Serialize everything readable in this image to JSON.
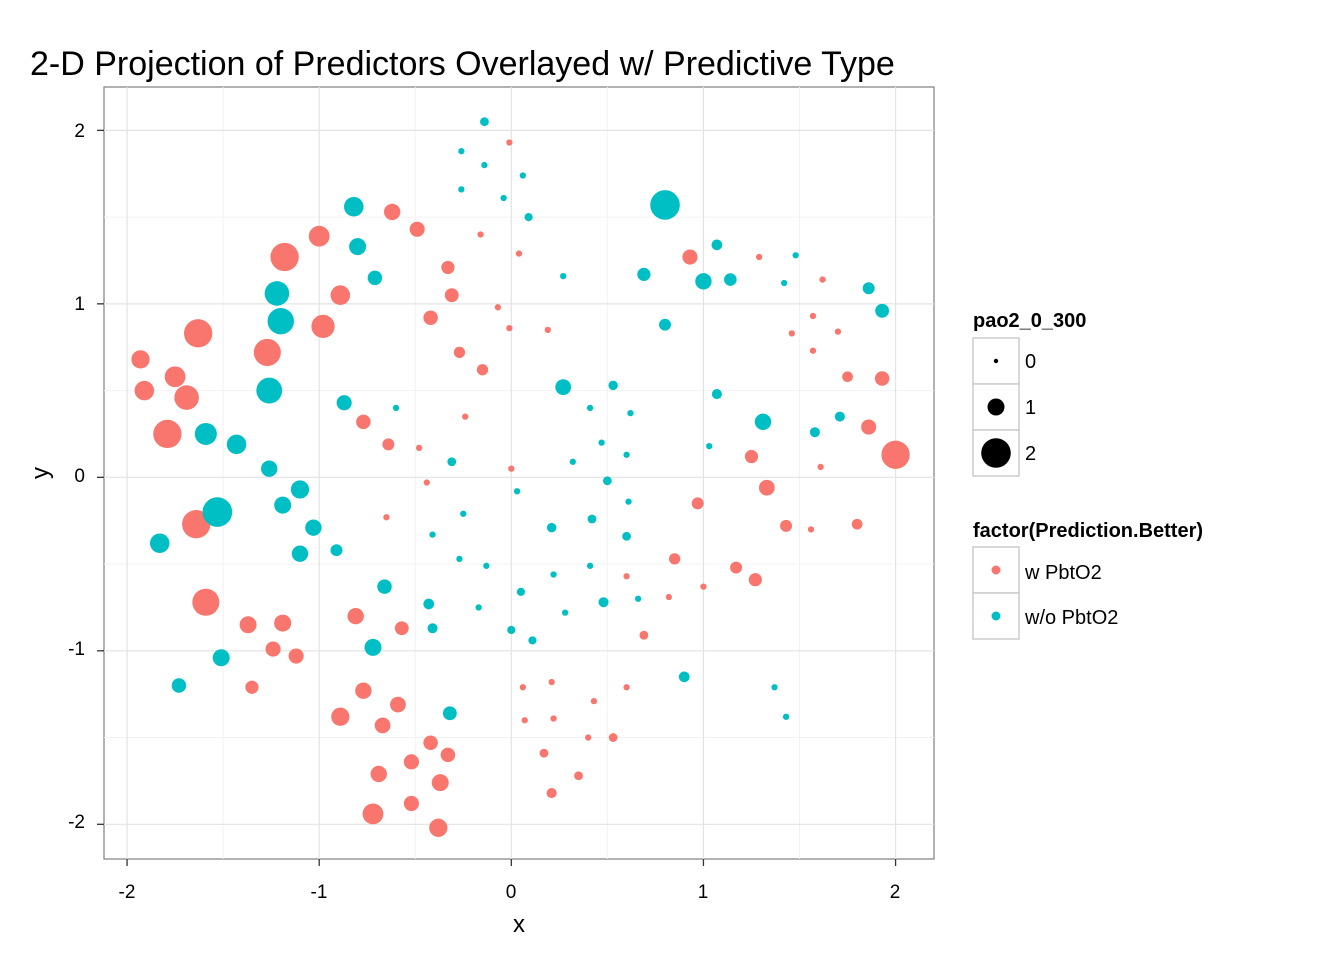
{
  "chart_data": {
    "type": "scatter",
    "title": "2-D Projection of Predictors Overlayed w/ Predictive Type",
    "xlabel": "x",
    "ylabel": "y",
    "xlim": [
      -2.12,
      2.2
    ],
    "ylim": [
      -2.2,
      2.25
    ],
    "x_ticks": [
      -2,
      -1,
      0,
      1,
      2
    ],
    "y_ticks": [
      -2,
      -1,
      0,
      1,
      2
    ],
    "x_tick_labels": [
      "-2",
      "-1",
      "0",
      "1",
      "2"
    ],
    "y_tick_labels": [
      "-2",
      "-1",
      "0",
      "1",
      "2"
    ],
    "grid": true,
    "legend_position": "right",
    "size_legend": {
      "title": "pao2_0_300",
      "values": [
        0,
        1,
        2
      ],
      "labels": [
        "0",
        "1",
        "2"
      ]
    },
    "color_legend": {
      "title": "factor(Prediction.Better)",
      "entries": [
        {
          "label": "w PbtO2",
          "color": "#F8766D"
        },
        {
          "label": "w/o PbtO2",
          "color": "#00BFC4"
        }
      ]
    },
    "series": [
      {
        "name": "w PbtO2",
        "color": "#F8766D",
        "points": [
          [
            -0.01,
            1.93,
            0.15
          ],
          [
            -0.62,
            1.53,
            0.95
          ],
          [
            -0.49,
            1.43,
            0.85
          ],
          [
            -1.0,
            1.39,
            1.3
          ],
          [
            -1.18,
            1.27,
            1.9
          ],
          [
            -0.33,
            1.21,
            0.7
          ],
          [
            -0.89,
            1.05,
            1.2
          ],
          [
            -0.31,
            1.05,
            0.75
          ],
          [
            -0.98,
            0.87,
            1.5
          ],
          [
            -0.42,
            0.92,
            0.8
          ],
          [
            -1.63,
            0.83,
            1.9
          ],
          [
            -1.27,
            0.72,
            1.8
          ],
          [
            -1.93,
            0.68,
            1.1
          ],
          [
            -1.91,
            0.5,
            1.2
          ],
          [
            -1.75,
            0.58,
            1.3
          ],
          [
            -1.69,
            0.46,
            1.6
          ],
          [
            -1.79,
            0.25,
            1.9
          ],
          [
            -0.77,
            0.32,
            0.8
          ],
          [
            -0.64,
            0.19,
            0.6
          ],
          [
            -0.27,
            0.72,
            0.55
          ],
          [
            -0.15,
            0.62,
            0.55
          ],
          [
            -0.16,
            1.4,
            0.15
          ],
          [
            0.04,
            1.29,
            0.15
          ],
          [
            -0.07,
            0.98,
            0.15
          ],
          [
            -0.01,
            0.86,
            0.15
          ],
          [
            0.19,
            0.85,
            0.15
          ],
          [
            -0.24,
            0.35,
            0.15
          ],
          [
            -0.48,
            0.17,
            0.15
          ],
          [
            0.0,
            0.05,
            0.15
          ],
          [
            -0.44,
            -0.03,
            0.15
          ],
          [
            -0.65,
            -0.23,
            0.15
          ],
          [
            -1.64,
            -0.27,
            1.9
          ],
          [
            -1.59,
            -0.72,
            1.8
          ],
          [
            -1.37,
            -0.85,
            1.0
          ],
          [
            -1.19,
            -0.84,
            1.0
          ],
          [
            -1.24,
            -0.99,
            0.85
          ],
          [
            -1.12,
            -1.03,
            0.85
          ],
          [
            -0.81,
            -0.8,
            0.95
          ],
          [
            -0.57,
            -0.87,
            0.75
          ],
          [
            -1.35,
            -1.21,
            0.7
          ],
          [
            -0.77,
            -1.23,
            0.95
          ],
          [
            -0.89,
            -1.38,
            1.1
          ],
          [
            -0.59,
            -1.31,
            0.9
          ],
          [
            -0.67,
            -1.43,
            0.9
          ],
          [
            -0.42,
            -1.53,
            0.8
          ],
          [
            -0.33,
            -1.6,
            0.8
          ],
          [
            -0.52,
            -1.64,
            0.85
          ],
          [
            -0.69,
            -1.71,
            0.95
          ],
          [
            -0.37,
            -1.76,
            1.0
          ],
          [
            -0.52,
            -1.88,
            0.85
          ],
          [
            -0.72,
            -1.94,
            1.3
          ],
          [
            -0.38,
            -2.02,
            1.1
          ],
          [
            0.06,
            -1.21,
            0.15
          ],
          [
            0.21,
            -1.18,
            0.15
          ],
          [
            0.43,
            -1.29,
            0.15
          ],
          [
            0.6,
            -1.21,
            0.15
          ],
          [
            0.07,
            -1.4,
            0.15
          ],
          [
            0.22,
            -1.39,
            0.15
          ],
          [
            0.4,
            -1.5,
            0.15
          ],
          [
            0.53,
            -1.5,
            0.35
          ],
          [
            0.17,
            -1.59,
            0.35
          ],
          [
            0.35,
            -1.72,
            0.35
          ],
          [
            0.21,
            -1.82,
            0.45
          ],
          [
            0.69,
            -0.91,
            0.35
          ],
          [
            0.6,
            -0.57,
            0.15
          ],
          [
            0.82,
            -0.69,
            0.15
          ],
          [
            0.85,
            -0.47,
            0.55
          ],
          [
            1.0,
            -0.63,
            0.15
          ],
          [
            1.17,
            -0.52,
            0.6
          ],
          [
            1.27,
            -0.59,
            0.7
          ],
          [
            0.97,
            -0.15,
            0.6
          ],
          [
            1.33,
            -0.06,
            0.9
          ],
          [
            1.25,
            0.12,
            0.7
          ],
          [
            1.43,
            -0.28,
            0.6
          ],
          [
            1.56,
            -0.3,
            0.15
          ],
          [
            1.8,
            -0.27,
            0.5
          ],
          [
            1.61,
            0.06,
            0.15
          ],
          [
            1.86,
            0.29,
            0.85
          ],
          [
            2.0,
            0.13,
            1.9
          ],
          [
            1.75,
            0.58,
            0.5
          ],
          [
            1.93,
            0.57,
            0.8
          ],
          [
            1.57,
            0.73,
            0.15
          ],
          [
            1.46,
            0.83,
            0.15
          ],
          [
            1.7,
            0.84,
            0.15
          ],
          [
            1.57,
            0.93,
            0.15
          ],
          [
            1.62,
            1.14,
            0.15
          ],
          [
            1.29,
            1.27,
            0.15
          ],
          [
            0.93,
            1.27,
            0.85
          ]
        ]
      },
      {
        "name": "w/o PbtO2",
        "color": "#00BFC4",
        "points": [
          [
            -0.14,
            2.05,
            0.35
          ],
          [
            -0.26,
            1.88,
            0.15
          ],
          [
            -0.14,
            1.8,
            0.15
          ],
          [
            0.06,
            1.74,
            0.15
          ],
          [
            -0.26,
            1.66,
            0.15
          ],
          [
            -0.04,
            1.61,
            0.15
          ],
          [
            0.09,
            1.5,
            0.3
          ],
          [
            -0.82,
            1.56,
            1.2
          ],
          [
            -0.8,
            1.33,
            1.0
          ],
          [
            -0.71,
            1.15,
            0.8
          ],
          [
            0.27,
            1.16,
            0.15
          ],
          [
            0.8,
            1.57,
            2.0
          ],
          [
            1.07,
            1.34,
            0.5
          ],
          [
            0.69,
            1.17,
            0.7
          ],
          [
            1.0,
            1.13,
            0.95
          ],
          [
            1.14,
            1.14,
            0.65
          ],
          [
            1.42,
            1.12,
            0.15
          ],
          [
            1.48,
            1.28,
            0.15
          ],
          [
            1.86,
            1.09,
            0.6
          ],
          [
            1.93,
            0.96,
            0.75
          ],
          [
            -1.22,
            1.06,
            1.6
          ],
          [
            -1.2,
            0.9,
            1.75
          ],
          [
            -1.26,
            0.5,
            1.7
          ],
          [
            -0.87,
            0.43,
            0.85
          ],
          [
            0.8,
            0.88,
            0.6
          ],
          [
            0.27,
            0.52,
            0.9
          ],
          [
            0.53,
            0.53,
            0.4
          ],
          [
            1.07,
            0.48,
            0.45
          ],
          [
            1.31,
            0.32,
            0.95
          ],
          [
            1.71,
            0.35,
            0.45
          ],
          [
            1.58,
            0.26,
            0.45
          ],
          [
            -0.6,
            0.4,
            0.15
          ],
          [
            0.41,
            0.4,
            0.15
          ],
          [
            0.62,
            0.37,
            0.15
          ],
          [
            0.47,
            0.2,
            0.15
          ],
          [
            1.03,
            0.18,
            0.15
          ],
          [
            0.6,
            0.13,
            0.15
          ],
          [
            0.32,
            0.09,
            0.15
          ],
          [
            -0.31,
            0.09,
            0.35
          ],
          [
            -1.59,
            0.25,
            1.4
          ],
          [
            -1.43,
            0.19,
            1.2
          ],
          [
            -1.26,
            0.05,
            0.95
          ],
          [
            -1.1,
            -0.07,
            1.1
          ],
          [
            -1.19,
            -0.16,
            1.0
          ],
          [
            -1.53,
            -0.2,
            2.0
          ],
          [
            -1.83,
            -0.38,
            1.2
          ],
          [
            -1.03,
            -0.29,
            0.95
          ],
          [
            -1.1,
            -0.44,
            0.95
          ],
          [
            -0.91,
            -0.42,
            0.6
          ],
          [
            0.03,
            -0.08,
            0.15
          ],
          [
            0.5,
            -0.02,
            0.35
          ],
          [
            0.61,
            -0.14,
            0.15
          ],
          [
            -0.25,
            -0.21,
            0.15
          ],
          [
            0.42,
            -0.24,
            0.35
          ],
          [
            0.21,
            -0.29,
            0.4
          ],
          [
            -0.41,
            -0.33,
            0.15
          ],
          [
            0.6,
            -0.34,
            0.35
          ],
          [
            -0.27,
            -0.47,
            0.15
          ],
          [
            -0.13,
            -0.51,
            0.15
          ],
          [
            0.22,
            -0.56,
            0.15
          ],
          [
            0.41,
            -0.51,
            0.15
          ],
          [
            -0.66,
            -0.63,
            0.8
          ],
          [
            -0.43,
            -0.73,
            0.5
          ],
          [
            0.05,
            -0.66,
            0.3
          ],
          [
            0.48,
            -0.72,
            0.45
          ],
          [
            0.66,
            -0.7,
            0.15
          ],
          [
            -0.17,
            -0.75,
            0.15
          ],
          [
            0.28,
            -0.78,
            0.15
          ],
          [
            -0.41,
            -0.87,
            0.45
          ],
          [
            0.0,
            -0.88,
            0.3
          ],
          [
            0.11,
            -0.94,
            0.3
          ],
          [
            -0.72,
            -0.98,
            1.0
          ],
          [
            -1.51,
            -1.04,
            1.0
          ],
          [
            -1.73,
            -1.2,
            0.8
          ],
          [
            -0.32,
            -1.36,
            0.75
          ],
          [
            0.9,
            -1.15,
            0.5
          ],
          [
            1.37,
            -1.21,
            0.15
          ],
          [
            1.43,
            -1.38,
            0.15
          ]
        ]
      }
    ]
  }
}
